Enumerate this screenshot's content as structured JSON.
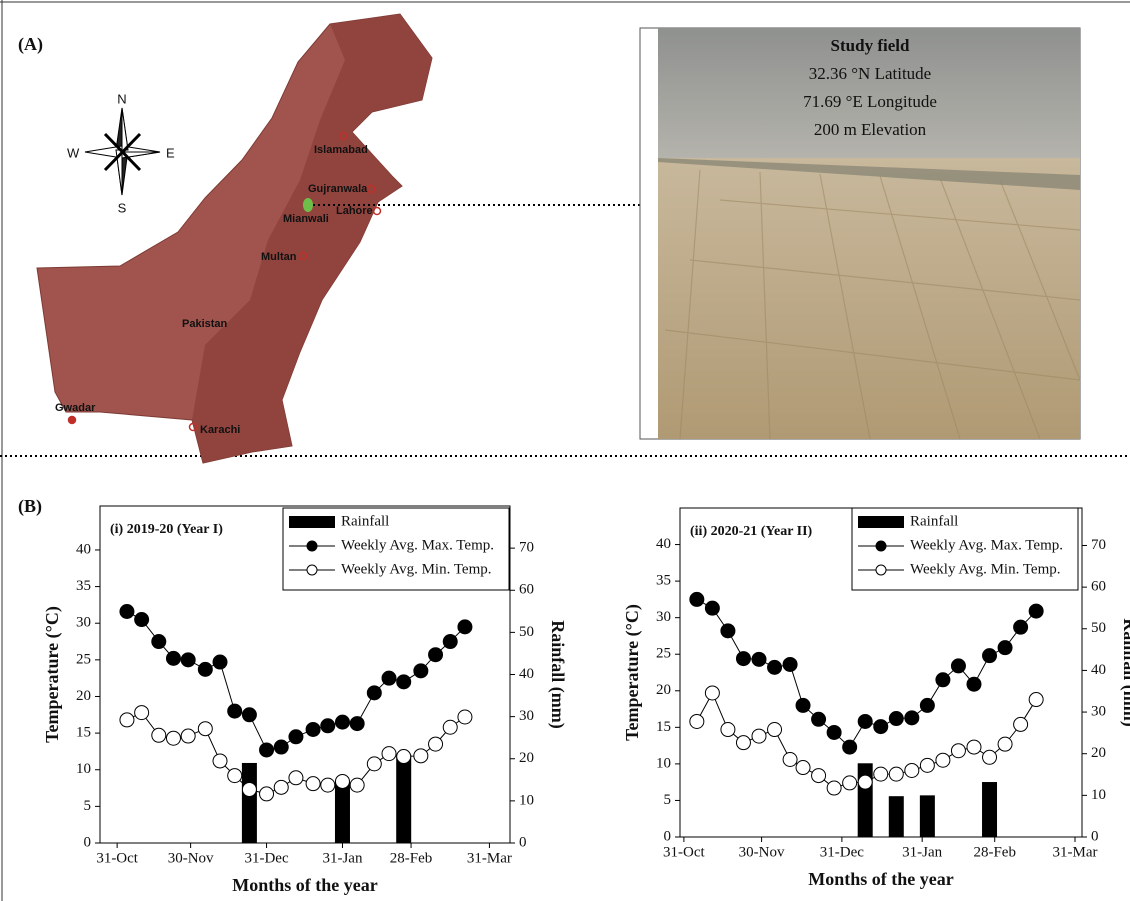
{
  "panel_a": {
    "label": "(A)",
    "compass": {
      "n": "N",
      "s": "S",
      "e": "E",
      "w": "W"
    },
    "cities": [
      "Islamabad",
      "Gujranwala",
      "Lahore",
      "Mianwali",
      "Multan",
      "Gwadar",
      "Karachi"
    ],
    "country": "Pakistan",
    "study_field": {
      "title": "Study field",
      "lines": [
        "32.36 °N Latitude",
        "71.69 °E Longitude",
        "200 m Elevation"
      ]
    }
  },
  "panel_b": {
    "label": "(B)"
  },
  "chart_data": [
    {
      "type": "combo",
      "title": "(i) 2019-20 (Year I)",
      "x_label": "Months of the year",
      "y_label": "Temperature (°C)",
      "y2_label": "Rainfall (mm)",
      "xlim": [
        -7,
        160.4
      ],
      "xticks": [
        {
          "value": 0,
          "label": "31-Oct"
        },
        {
          "value": 30,
          "label": "30-Nov"
        },
        {
          "value": 61,
          "label": "31-Dec"
        },
        {
          "value": 92,
          "label": "31-Jan"
        },
        {
          "value": 120,
          "label": "28-Feb"
        },
        {
          "value": 152,
          "label": "31-Mar"
        }
      ],
      "ylim": [
        0,
        46
      ],
      "yticks": [
        0,
        5,
        10,
        15,
        20,
        25,
        30,
        35,
        40
      ],
      "y2lim": [
        0,
        80
      ],
      "y2ticks": [
        0,
        10,
        20,
        30,
        40,
        50,
        60,
        70
      ],
      "series": [
        {
          "name": "Rainfall",
          "type": "bar",
          "axis": "y2",
          "color": "#000000",
          "x": [
            54,
            92,
            117
          ],
          "values": [
            19,
            14.5,
            21
          ]
        },
        {
          "name": "Weekly Avg. Max. Temp.",
          "type": "line",
          "color": "#000000",
          "marker_fill": "#000000",
          "x": [
            4,
            10,
            17,
            23,
            29,
            36,
            42,
            48,
            54,
            61,
            67,
            73,
            80,
            86,
            92,
            98,
            105,
            111,
            117,
            124,
            130,
            136,
            142
          ],
          "values": [
            31.6,
            30.5,
            27.5,
            25.2,
            25,
            23.7,
            24.7,
            18,
            17.5,
            12.7,
            13.1,
            14.5,
            15.5,
            16,
            16.5,
            16.3,
            20.5,
            22.5,
            22,
            23.5,
            25.7,
            27.5,
            29.5
          ]
        },
        {
          "name": "Weekly Avg. Min. Temp.",
          "type": "line",
          "color": "#000000",
          "marker_fill": "#ffffff",
          "x": [
            4,
            10,
            17,
            23,
            29,
            36,
            42,
            48,
            54,
            61,
            67,
            73,
            80,
            86,
            92,
            98,
            105,
            111,
            117,
            124,
            130,
            136,
            142
          ],
          "values": [
            16.8,
            17.8,
            14.7,
            14.3,
            14.6,
            15.6,
            11.2,
            9.2,
            7.3,
            6.7,
            7.6,
            8.9,
            8.1,
            7.9,
            8.4,
            7.9,
            10.8,
            12.2,
            11.8,
            11.9,
            13.5,
            15.8,
            17.2
          ]
        }
      ]
    },
    {
      "type": "combo",
      "title": "(ii) 2020-21 (Year II)",
      "x_label": "Months of the year",
      "y_label": "Temperature (°C)",
      "y2_label": "Rainfall (mm)",
      "xlim": [
        -1.5,
        153.7
      ],
      "xticks": [
        {
          "value": 0,
          "label": "31-Oct"
        },
        {
          "value": 30,
          "label": "30-Nov"
        },
        {
          "value": 61,
          "label": "31-Dec"
        },
        {
          "value": 92,
          "label": "31-Jan"
        },
        {
          "value": 120,
          "label": "28-Feb"
        },
        {
          "value": 151,
          "label": "31-Mar"
        }
      ],
      "ylim": [
        0,
        45
      ],
      "yticks": [
        0,
        5,
        10,
        15,
        20,
        25,
        30,
        35,
        40
      ],
      "y2lim": [
        0,
        79
      ],
      "y2ticks": [
        0,
        10,
        20,
        30,
        40,
        50,
        60,
        70
      ],
      "series": [
        {
          "name": "Rainfall",
          "type": "bar",
          "axis": "y2",
          "color": "#000000",
          "x": [
            70,
            82,
            94,
            118
          ],
          "values": [
            17.7,
            9.8,
            10,
            13.2
          ]
        },
        {
          "name": "Weekly Avg. Max. Temp.",
          "type": "line",
          "color": "#000000",
          "marker_fill": "#000000",
          "x": [
            5,
            11,
            17,
            23,
            29,
            35,
            41,
            46,
            52,
            58,
            64,
            70,
            76,
            82,
            88,
            94,
            100,
            106,
            112,
            118,
            124,
            130,
            136
          ],
          "values": [
            32.5,
            31.3,
            28.2,
            24.4,
            24.3,
            23.2,
            23.6,
            18,
            16.1,
            14.3,
            12.3,
            15.8,
            15.1,
            16.2,
            16.3,
            18,
            21.5,
            23.4,
            20.9,
            24.8,
            25.9,
            28.7,
            30.9
          ]
        },
        {
          "name": "Weekly Avg. Min. Temp.",
          "type": "line",
          "color": "#000000",
          "marker_fill": "#ffffff",
          "x": [
            5,
            11,
            17,
            23,
            29,
            35,
            41,
            46,
            52,
            58,
            64,
            70,
            76,
            82,
            88,
            94,
            100,
            106,
            112,
            118,
            124,
            130,
            136
          ],
          "values": [
            15.8,
            19.7,
            14.7,
            12.9,
            13.8,
            14.7,
            10.6,
            9.5,
            8.4,
            6.7,
            7.4,
            7.5,
            8.6,
            8.6,
            9.1,
            9.8,
            10.5,
            11.8,
            12.3,
            10.9,
            12.7,
            15.4,
            18.8
          ]
        }
      ]
    }
  ]
}
